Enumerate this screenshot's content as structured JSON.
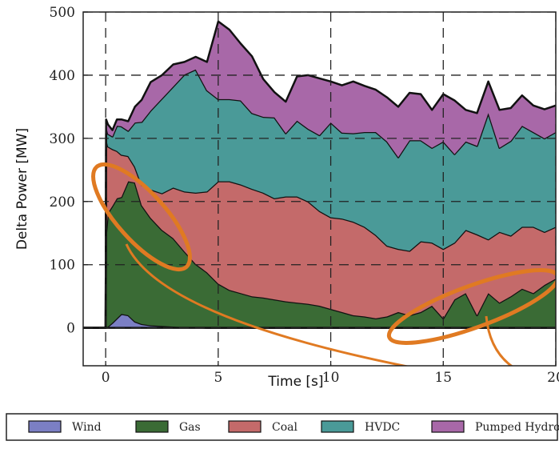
{
  "chart_data": {
    "type": "area",
    "stacked": true,
    "xlabel": "Time [s]",
    "ylabel": "Delta Power [MW]",
    "xlim": [
      -1,
      20
    ],
    "ylim": [
      -60,
      500
    ],
    "xticks": [
      0,
      5,
      10,
      15,
      20
    ],
    "yticks": [
      0,
      100,
      200,
      300,
      400,
      500
    ],
    "grid": true,
    "legend_position": "bottom",
    "x": [
      -1,
      -0.2,
      0,
      0.02,
      0.1,
      0.3,
      0.5,
      0.7,
      1,
      1.3,
      1.6,
      2,
      2.5,
      3,
      3.5,
      4,
      4.5,
      5,
      5.5,
      6,
      6.5,
      7,
      7.5,
      8,
      8.5,
      9,
      9.5,
      10,
      10.5,
      11,
      11.5,
      12,
      12.5,
      13,
      13.5,
      14,
      14.5,
      15,
      15.5,
      16,
      16.5,
      17,
      17.5,
      18,
      18.5,
      19,
      19.5,
      20
    ],
    "series": [
      {
        "name": "Wind",
        "color": "#7b7fc4",
        "values": [
          0,
          0,
          0,
          0,
          2,
          8,
          15,
          22,
          20,
          10,
          6,
          4,
          3,
          2,
          1,
          1,
          0,
          0,
          0,
          0,
          0,
          0,
          0,
          0,
          0,
          0,
          0,
          0,
          0,
          0,
          0,
          0,
          0,
          0,
          0,
          0,
          0,
          0,
          0,
          0,
          0,
          0,
          0,
          0,
          0,
          0,
          0,
          0
        ]
      },
      {
        "name": "Gas",
        "color": "#3a6b35",
        "values": [
          0,
          0,
          0,
          150,
          180,
          185,
          190,
          185,
          212,
          220,
          188,
          170,
          152,
          140,
          120,
          100,
          88,
          70,
          60,
          55,
          50,
          48,
          45,
          42,
          40,
          38,
          35,
          30,
          25,
          20,
          18,
          15,
          18,
          25,
          20,
          25,
          35,
          15,
          45,
          55,
          20,
          55,
          40,
          50,
          62,
          55,
          68,
          78
        ]
      },
      {
        "name": "Coal",
        "color": "#c46a6a",
        "values": [
          0,
          0,
          0,
          150,
          105,
          90,
          75,
          67,
          40,
          25,
          32,
          45,
          58,
          80,
          95,
          113,
          128,
          162,
          172,
          172,
          170,
          166,
          160,
          166,
          168,
          162,
          150,
          145,
          148,
          148,
          142,
          132,
          112,
          100,
          102,
          112,
          100,
          110,
          90,
          100,
          128,
          85,
          112,
          96,
          98,
          105,
          84,
          82
        ]
      },
      {
        "name": "HVDC",
        "color": "#4a9a98",
        "values": [
          0,
          0,
          0,
          20,
          20,
          20,
          40,
          45,
          40,
          70,
          100,
          125,
          150,
          160,
          185,
          195,
          160,
          130,
          130,
          133,
          120,
          120,
          128,
          100,
          120,
          115,
          120,
          150,
          136,
          140,
          150,
          163,
          165,
          145,
          175,
          160,
          150,
          170,
          140,
          140,
          140,
          200,
          133,
          150,
          160,
          150,
          148,
          150
        ]
      },
      {
        "name": "Pumped Hydro",
        "color": "#a868a8",
        "values": [
          0,
          0,
          0,
          10,
          15,
          10,
          10,
          11,
          15,
          25,
          35,
          45,
          37,
          35,
          20,
          20,
          45,
          123,
          110,
          90,
          90,
          60,
          40,
          50,
          70,
          85,
          90,
          65,
          75,
          82,
          73,
          67,
          70,
          80,
          75,
          73,
          60,
          75,
          85,
          50,
          52,
          50,
          60,
          52,
          48,
          42,
          46,
          42
        ]
      }
    ]
  }
}
